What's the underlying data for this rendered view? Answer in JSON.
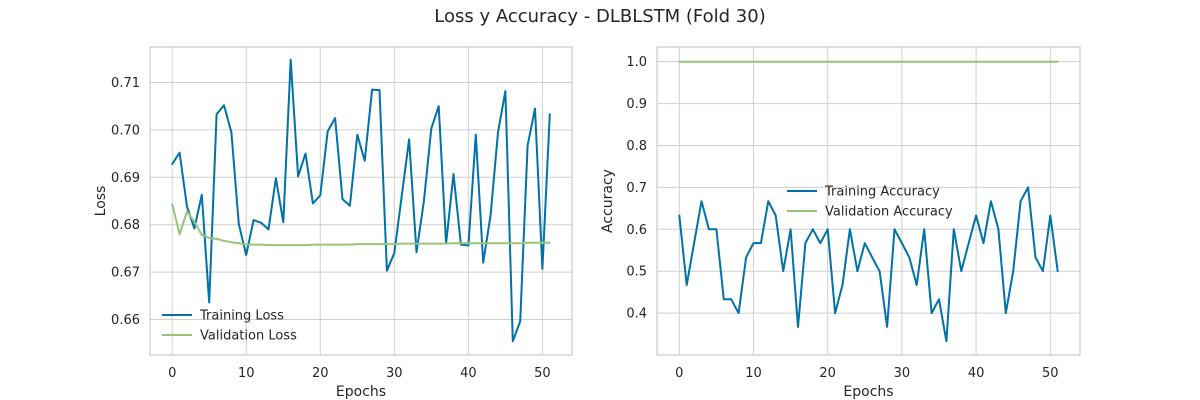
{
  "figure": {
    "title": "Loss y Accuracy - DLBLSTM (Fold 30)"
  },
  "colors": {
    "training": "#0072a8",
    "validation": "#96c47a",
    "grid": "#d0d0d0",
    "frame": "#cccccc"
  },
  "chart_data": [
    {
      "type": "line",
      "xlabel": "Epochs",
      "ylabel": "Loss",
      "xlim": [
        -3.0,
        54.0
      ],
      "ylim": [
        0.6525,
        0.7175
      ],
      "xticks": [
        0,
        10,
        20,
        30,
        40,
        50
      ],
      "yticks": [
        0.66,
        0.67,
        0.68,
        0.69,
        0.7,
        0.71
      ],
      "ytick_labels": [
        "0.66",
        "0.67",
        "0.68",
        "0.69",
        "0.70",
        "0.71"
      ],
      "grid": true,
      "legend_position": "lower-left",
      "x": [
        0,
        1,
        2,
        3,
        4,
        5,
        6,
        7,
        8,
        9,
        10,
        11,
        12,
        13,
        14,
        15,
        16,
        17,
        18,
        19,
        20,
        21,
        22,
        23,
        24,
        25,
        26,
        27,
        28,
        29,
        30,
        31,
        32,
        33,
        34,
        35,
        36,
        37,
        38,
        39,
        40,
        41,
        42,
        43,
        44,
        45,
        46,
        47,
        48,
        49,
        50,
        51
      ],
      "series": [
        {
          "name": "Training Loss",
          "values": [
            0.6928,
            0.6952,
            0.6838,
            0.6792,
            0.6863,
            0.6636,
            0.7033,
            0.7052,
            0.6995,
            0.6801,
            0.6736,
            0.681,
            0.6804,
            0.679,
            0.6898,
            0.6805,
            0.7148,
            0.6902,
            0.695,
            0.6845,
            0.6862,
            0.6997,
            0.7025,
            0.6854,
            0.684,
            0.699,
            0.6935,
            0.7085,
            0.7084,
            0.6703,
            0.674,
            0.686,
            0.698,
            0.6742,
            0.685,
            0.7003,
            0.705,
            0.676,
            0.6907,
            0.6758,
            0.6756,
            0.699,
            0.672,
            0.682,
            0.6995,
            0.7082,
            0.6554,
            0.6596,
            0.6967,
            0.7045,
            0.6707,
            0.7033
          ]
        },
        {
          "name": "Validation Loss",
          "values": [
            0.6843,
            0.678,
            0.6828,
            0.6806,
            0.6778,
            0.6772,
            0.677,
            0.6766,
            0.6763,
            0.6761,
            0.6758,
            0.6758,
            0.6758,
            0.6757,
            0.6757,
            0.6757,
            0.6757,
            0.6757,
            0.6757,
            0.6758,
            0.6758,
            0.6758,
            0.6758,
            0.6758,
            0.6758,
            0.6759,
            0.6759,
            0.6759,
            0.6759,
            0.6759,
            0.6759,
            0.676,
            0.676,
            0.676,
            0.676,
            0.676,
            0.676,
            0.676,
            0.6761,
            0.6761,
            0.6761,
            0.6761,
            0.6761,
            0.6761,
            0.6761,
            0.6761,
            0.6761,
            0.6761,
            0.6762,
            0.6762,
            0.6762,
            0.6762
          ]
        }
      ]
    },
    {
      "type": "line",
      "xlabel": "Epochs",
      "ylabel": "Accuracy",
      "xlim": [
        -3.0,
        54.0
      ],
      "ylim": [
        0.3,
        1.035
      ],
      "xticks": [
        0,
        10,
        20,
        30,
        40,
        50
      ],
      "yticks": [
        0.4,
        0.5,
        0.6,
        0.7,
        0.8,
        0.9,
        1.0
      ],
      "ytick_labels": [
        "0.4",
        "0.5",
        "0.6",
        "0.7",
        "0.8",
        "0.9",
        "1.0"
      ],
      "grid": true,
      "legend_position": "center",
      "x": [
        0,
        1,
        2,
        3,
        4,
        5,
        6,
        7,
        8,
        9,
        10,
        11,
        12,
        13,
        14,
        15,
        16,
        17,
        18,
        19,
        20,
        21,
        22,
        23,
        24,
        25,
        26,
        27,
        28,
        29,
        30,
        31,
        32,
        33,
        34,
        35,
        36,
        37,
        38,
        39,
        40,
        41,
        42,
        43,
        44,
        45,
        46,
        47,
        48,
        49,
        50,
        51
      ],
      "series": [
        {
          "name": "Training Accuracy",
          "values": [
            0.633,
            0.467,
            0.567,
            0.667,
            0.6,
            0.6,
            0.433,
            0.433,
            0.4,
            0.533,
            0.567,
            0.567,
            0.667,
            0.633,
            0.5,
            0.6,
            0.367,
            0.567,
            0.6,
            0.567,
            0.6,
            0.4,
            0.467,
            0.6,
            0.5,
            0.567,
            0.533,
            0.5,
            0.367,
            0.6,
            0.567,
            0.533,
            0.467,
            0.6,
            0.4,
            0.433,
            0.333,
            0.6,
            0.5,
            0.567,
            0.633,
            0.567,
            0.667,
            0.6,
            0.4,
            0.5,
            0.667,
            0.7,
            0.533,
            0.5,
            0.633,
            0.5
          ]
        },
        {
          "name": "Validation Accuracy",
          "values": [
            1.0,
            1.0,
            1.0,
            1.0,
            1.0,
            1.0,
            1.0,
            1.0,
            1.0,
            1.0,
            1.0,
            1.0,
            1.0,
            1.0,
            1.0,
            1.0,
            1.0,
            1.0,
            1.0,
            1.0,
            1.0,
            1.0,
            1.0,
            1.0,
            1.0,
            1.0,
            1.0,
            1.0,
            1.0,
            1.0,
            1.0,
            1.0,
            1.0,
            1.0,
            1.0,
            1.0,
            1.0,
            1.0,
            1.0,
            1.0,
            1.0,
            1.0,
            1.0,
            1.0,
            1.0,
            1.0,
            1.0,
            1.0,
            1.0,
            1.0,
            1.0,
            1.0
          ]
        }
      ]
    }
  ]
}
